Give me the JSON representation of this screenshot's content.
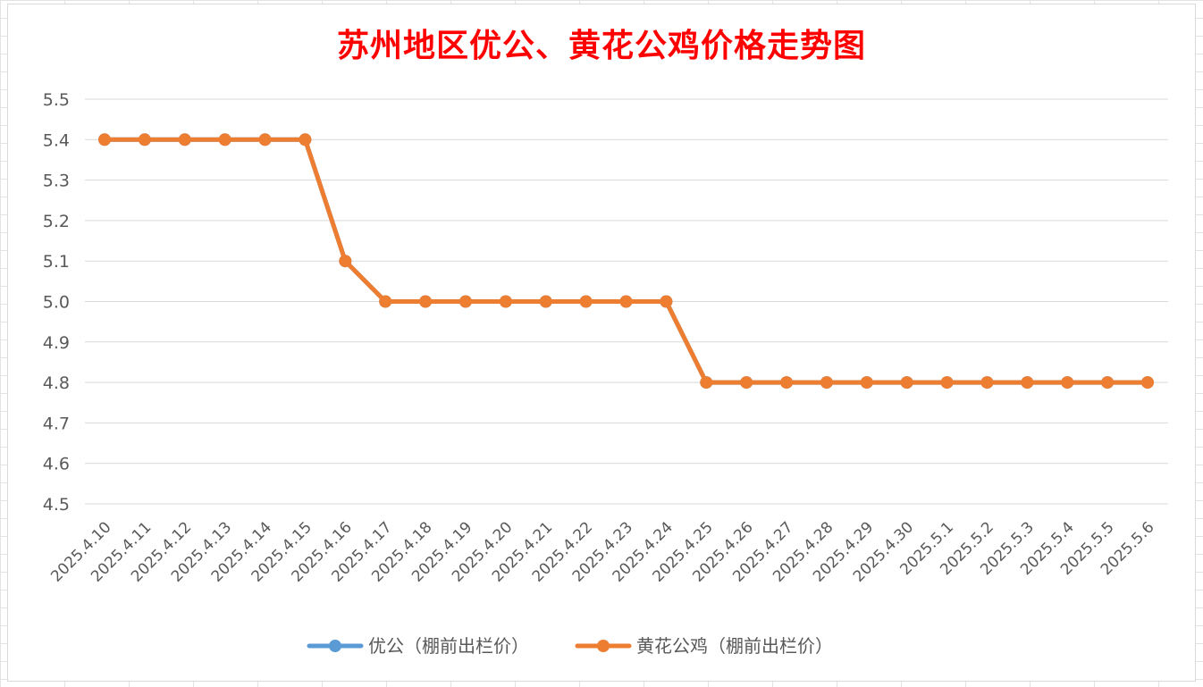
{
  "chart_data": {
    "type": "line",
    "title": "苏州地区优公、黄花公鸡价格走势图",
    "xlabel": "",
    "ylabel": "",
    "ylim": [
      4.5,
      5.5
    ],
    "yticks": [
      "5.5",
      "5.4",
      "5.3",
      "5.2",
      "5.1",
      "5.0",
      "4.9",
      "4.8",
      "4.7",
      "4.6",
      "4.5"
    ],
    "grid": true,
    "legend_position": "bottom",
    "categories": [
      "2025.4.10",
      "2025.4.11",
      "2025.4.12",
      "2025.4.13",
      "2025.4.14",
      "2025.4.15",
      "2025.4.16",
      "2025.4.17",
      "2025.4.18",
      "2025.4.19",
      "2025.4.20",
      "2025.4.21",
      "2025.4.22",
      "2025.4.23",
      "2025.4.24",
      "2025.4.25",
      "2025.4.26",
      "2025.4.27",
      "2025.4.28",
      "2025.4.29",
      "2025.4.30",
      "2025.5.1",
      "2025.5.2",
      "2025.5.3",
      "2025.5.4",
      "2025.5.5",
      "2025.5.6"
    ],
    "series": [
      {
        "name": "优公（棚前出栏价）",
        "color": "#5b9bd5",
        "values": [
          5.4,
          5.4,
          5.4,
          5.4,
          5.4,
          5.4,
          5.1,
          5.0,
          5.0,
          5.0,
          5.0,
          5.0,
          5.0,
          5.0,
          5.0,
          4.8,
          4.8,
          4.8,
          4.8,
          4.8,
          4.8,
          4.8,
          4.8,
          4.8,
          4.8,
          4.8,
          4.8
        ]
      },
      {
        "name": "黄花公鸡（棚前出栏价）",
        "color": "#ed7d31",
        "values": [
          5.4,
          5.4,
          5.4,
          5.4,
          5.4,
          5.4,
          5.1,
          5.0,
          5.0,
          5.0,
          5.0,
          5.0,
          5.0,
          5.0,
          5.0,
          4.8,
          4.8,
          4.8,
          4.8,
          4.8,
          4.8,
          4.8,
          4.8,
          4.8,
          4.8,
          4.8,
          4.8
        ]
      }
    ]
  }
}
